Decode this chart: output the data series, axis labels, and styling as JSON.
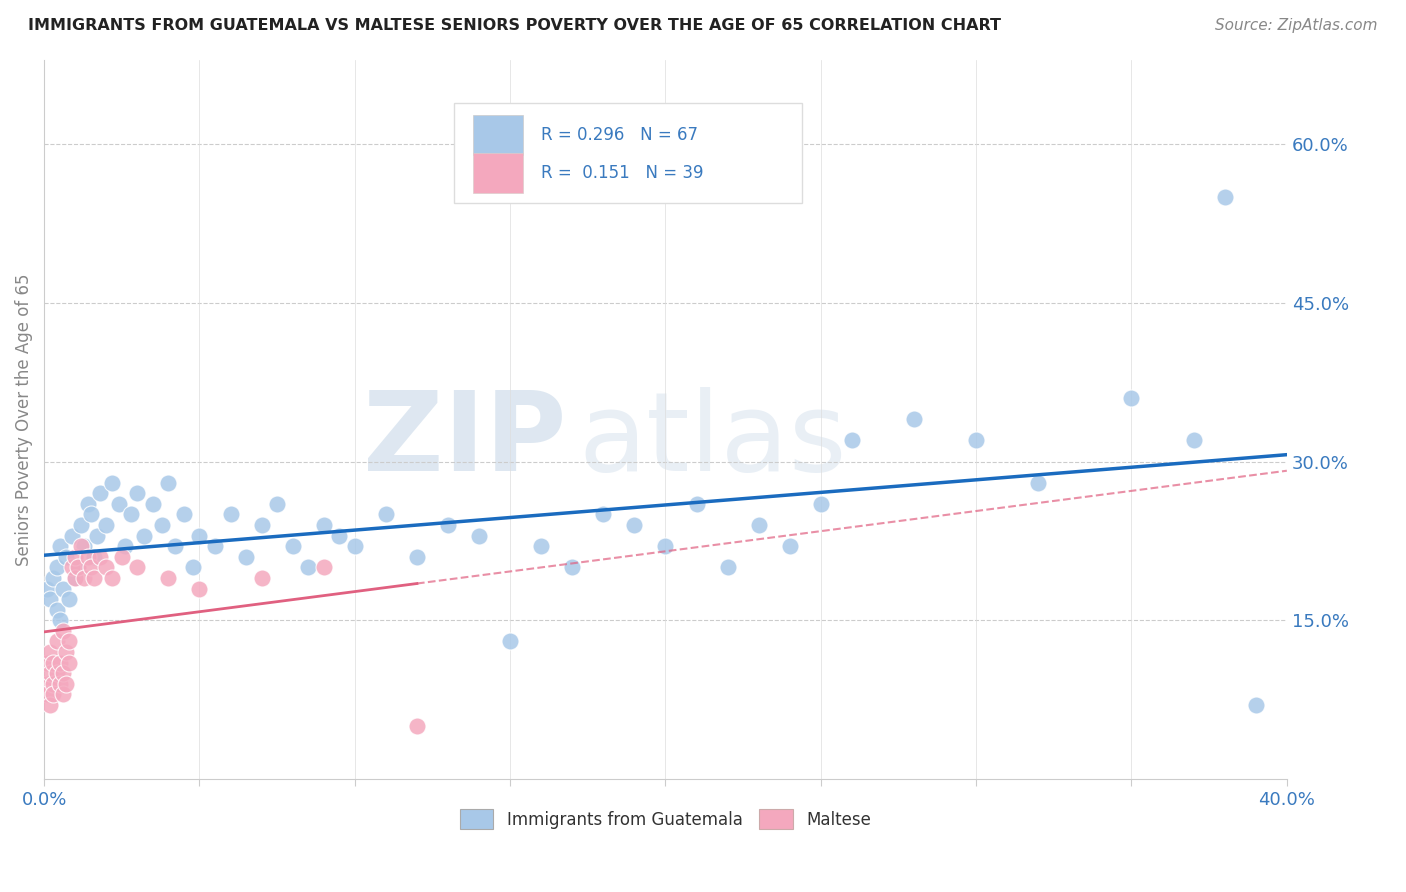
{
  "title": "IMMIGRANTS FROM GUATEMALA VS MALTESE SENIORS POVERTY OVER THE AGE OF 65 CORRELATION CHART",
  "source": "Source: ZipAtlas.com",
  "ylabel": "Seniors Poverty Over the Age of 65",
  "xlim": [
    0.0,
    0.4
  ],
  "ylim": [
    0.0,
    0.68
  ],
  "xtick_positions": [
    0.0,
    0.05,
    0.1,
    0.15,
    0.2,
    0.25,
    0.3,
    0.35,
    0.4
  ],
  "ytick_right": [
    0.15,
    0.3,
    0.45,
    0.6
  ],
  "ytick_right_labels": [
    "15.0%",
    "30.0%",
    "45.0%",
    "60.0%"
  ],
  "r_blue": 0.296,
  "n_blue": 67,
  "r_pink": 0.151,
  "n_pink": 39,
  "blue_color": "#a8c8e8",
  "pink_color": "#f4a8be",
  "blue_line_color": "#1a6bbf",
  "pink_line_color": "#e06080",
  "pink_dash_color": "#f4a8be",
  "watermark_zip": "ZIP",
  "watermark_atlas": "atlas",
  "blue_x": [
    0.001,
    0.002,
    0.003,
    0.004,
    0.004,
    0.005,
    0.005,
    0.006,
    0.007,
    0.008,
    0.009,
    0.01,
    0.011,
    0.012,
    0.013,
    0.014,
    0.015,
    0.016,
    0.017,
    0.018,
    0.02,
    0.022,
    0.024,
    0.026,
    0.028,
    0.03,
    0.032,
    0.035,
    0.038,
    0.04,
    0.042,
    0.045,
    0.048,
    0.05,
    0.055,
    0.06,
    0.065,
    0.07,
    0.075,
    0.08,
    0.085,
    0.09,
    0.095,
    0.1,
    0.11,
    0.12,
    0.13,
    0.14,
    0.15,
    0.16,
    0.17,
    0.18,
    0.19,
    0.2,
    0.21,
    0.22,
    0.23,
    0.24,
    0.25,
    0.26,
    0.28,
    0.3,
    0.32,
    0.35,
    0.37,
    0.38,
    0.39
  ],
  "blue_y": [
    0.18,
    0.17,
    0.19,
    0.2,
    0.16,
    0.22,
    0.15,
    0.18,
    0.21,
    0.17,
    0.23,
    0.19,
    0.2,
    0.24,
    0.22,
    0.26,
    0.25,
    0.21,
    0.23,
    0.27,
    0.24,
    0.28,
    0.26,
    0.22,
    0.25,
    0.27,
    0.23,
    0.26,
    0.24,
    0.28,
    0.22,
    0.25,
    0.2,
    0.23,
    0.22,
    0.25,
    0.21,
    0.24,
    0.26,
    0.22,
    0.2,
    0.24,
    0.23,
    0.22,
    0.25,
    0.21,
    0.24,
    0.23,
    0.13,
    0.22,
    0.2,
    0.25,
    0.24,
    0.22,
    0.26,
    0.2,
    0.24,
    0.22,
    0.26,
    0.32,
    0.34,
    0.32,
    0.28,
    0.36,
    0.32,
    0.55,
    0.07
  ],
  "pink_x": [
    0.001,
    0.001,
    0.001,
    0.002,
    0.002,
    0.002,
    0.003,
    0.003,
    0.003,
    0.004,
    0.004,
    0.005,
    0.005,
    0.006,
    0.006,
    0.006,
    0.007,
    0.007,
    0.008,
    0.008,
    0.009,
    0.01,
    0.01,
    0.011,
    0.012,
    0.013,
    0.014,
    0.015,
    0.016,
    0.018,
    0.02,
    0.022,
    0.025,
    0.03,
    0.04,
    0.05,
    0.07,
    0.09,
    0.12
  ],
  "pink_y": [
    0.09,
    0.11,
    0.08,
    0.1,
    0.07,
    0.12,
    0.09,
    0.11,
    0.08,
    0.1,
    0.13,
    0.09,
    0.11,
    0.1,
    0.08,
    0.14,
    0.12,
    0.09,
    0.11,
    0.13,
    0.2,
    0.19,
    0.21,
    0.2,
    0.22,
    0.19,
    0.21,
    0.2,
    0.19,
    0.21,
    0.2,
    0.19,
    0.21,
    0.2,
    0.19,
    0.18,
    0.19,
    0.2,
    0.05
  ]
}
